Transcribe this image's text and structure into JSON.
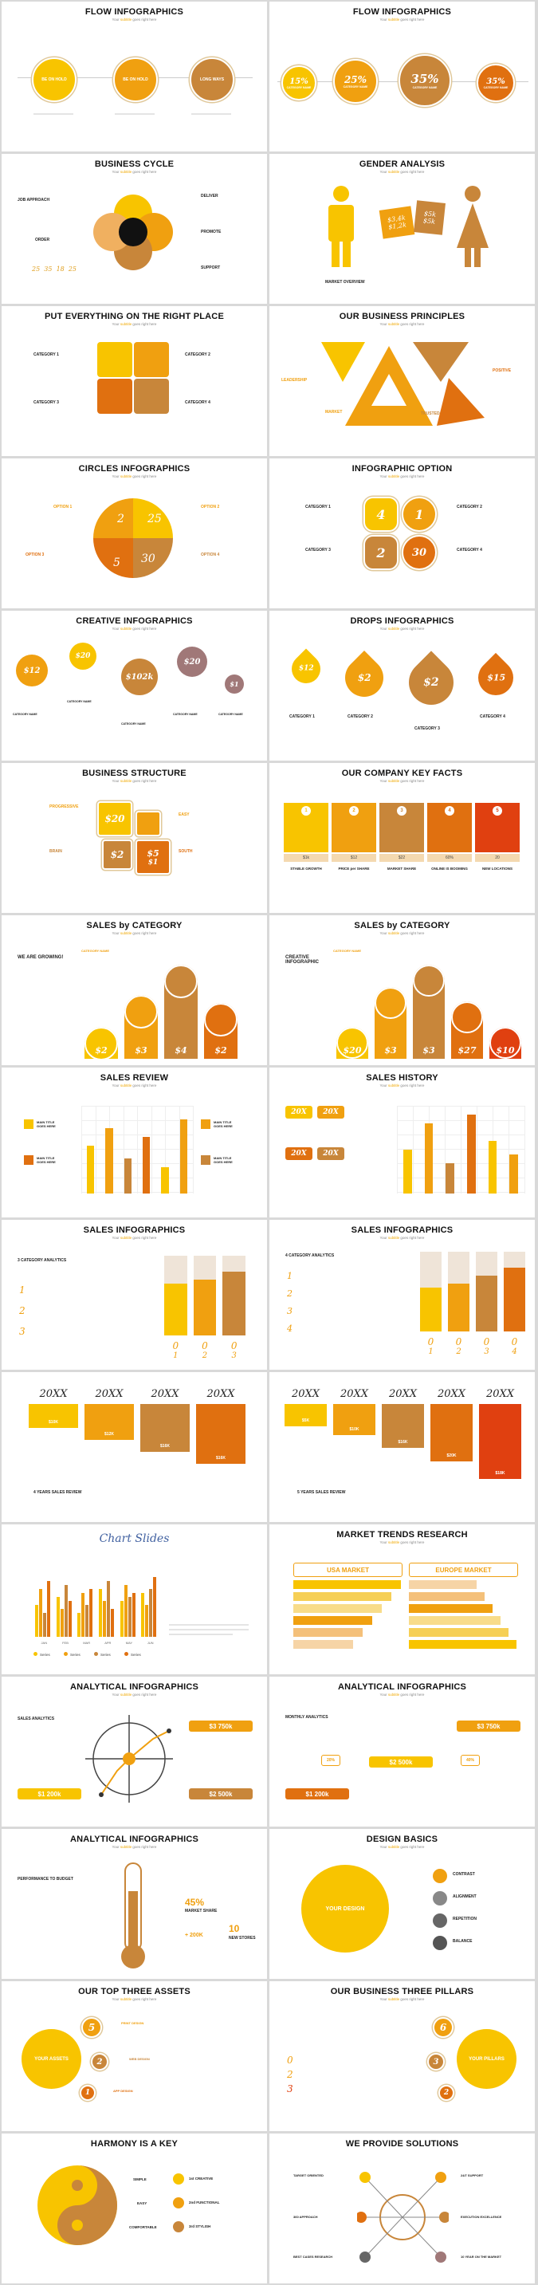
{
  "subtitle": {
    "pre": "Your ",
    "hl": "subtitle",
    "post": " goes right here"
  },
  "colors": {
    "yellow": "#f8c400",
    "orange": "#f0a010",
    "dark_orange": "#e07010",
    "brown": "#c8863a",
    "red": "#e04010",
    "mauve": "#a07878",
    "cream": "#f4d9b0"
  },
  "slides": [
    {
      "title": "FLOW INFOGRAPHICS",
      "circles": [
        "BE ON HOLD",
        "BE ON HOLD",
        "LONG WAYS"
      ]
    },
    {
      "title": "FLOW INFOGRAPHICS",
      "values": [
        "15%",
        "25%",
        "35%",
        "35%"
      ],
      "labels": [
        "CATEGORY NAME",
        "CATEGORY NAME",
        "CATEGORY NAME",
        "CATEGORY NAME"
      ]
    },
    {
      "title": "BUSINESS CYCLE",
      "labels": [
        "JOB APPROACH",
        "DELIVER",
        "PROMOTE",
        "ORDER",
        "SUPPORT"
      ],
      "nums": [
        "25",
        "35",
        "18",
        "25"
      ]
    },
    {
      "title": "GENDER ANALYSIS",
      "values": [
        "$3,4k",
        "$1,2k",
        "$5k",
        "$5k"
      ],
      "caption": "MARKET OVERVIEW"
    },
    {
      "title": "PUT EVERYTHING ON THE RIGHT PLACE",
      "cats": [
        "CATEGORY 1",
        "CATEGORY 2",
        "CATEGORY 3",
        "CATEGORY 4"
      ]
    },
    {
      "title": "OUR BUSINESS PRINCIPLES",
      "labels": [
        "LEADERSHIP",
        "MARKET",
        "TRUSTED",
        "POSITIVE"
      ]
    },
    {
      "title": "CIRCLES INFOGRAPHICS",
      "options": [
        "OPTION 1",
        "OPTION 2",
        "OPTION 3",
        "OPTION 4"
      ],
      "nums": [
        "25",
        "2",
        "30",
        "5"
      ]
    },
    {
      "title": "INFOGRAPHIC OPTION",
      "cats": [
        "CATEGORY 1",
        "CATEGORY 2",
        "CATEGORY 3",
        "CATEGORY 4"
      ],
      "nums": [
        "4",
        "1",
        "2",
        "30"
      ]
    },
    {
      "title": "CREATIVE INFOGRAPHICS",
      "values": [
        "$12",
        "$20",
        "$102k",
        "$20",
        "$1"
      ],
      "labels": [
        "CATEGORY NAME",
        "CATEGORY NAME",
        "CATEGORY NAME",
        "CATEGORY NAME",
        "CATEGORY NAME"
      ]
    },
    {
      "title": "DROPS INFOGRAPHICS",
      "values": [
        "$12",
        "$2",
        "$2",
        "$15"
      ],
      "labels": [
        "CATEGORY 1",
        "CATEGORY 2",
        "CATEGORY 3",
        "CATEGORY 4"
      ]
    },
    {
      "title": "BUSINESS STRUCTURE",
      "labels": [
        "PROGRESSIVE",
        "EASY",
        "BRAIN",
        "SOUTH"
      ],
      "nums": [
        "$20",
        "$2",
        "$5",
        "$1"
      ]
    },
    {
      "title": "OUR COMPANY KEY FACTS",
      "values": [
        "$1k",
        "$12",
        "$22",
        "60%",
        "20"
      ],
      "labels": [
        "STABLE GROWTH",
        "PRICE per SHARE",
        "MARKET SHARE",
        "ONLINE IS BOOMING",
        "NEW LOCATIONS"
      ]
    },
    {
      "title": "SALES by CATEGORY",
      "heading": "WE ARE GROWING!",
      "values": [
        "$2",
        "$3",
        "$4",
        "$2"
      ],
      "cat": "CATEGORY NAME"
    },
    {
      "title": "SALES by CATEGORY",
      "heading": "CREATIVE INFOGRAPHIC",
      "values": [
        "$20",
        "$3",
        "$3",
        "$27",
        "$10"
      ],
      "cat": "CATEGORY NAME"
    },
    {
      "title": "SALES REVIEW",
      "items": [
        "MAIN TITLE GOES HERE",
        "MAIN TITLE GOES HERE",
        "MAIN TITLE GOES HERE",
        "MAIN TITLE GOES HERE"
      ],
      "bars": [
        0.55,
        0.75,
        0.4,
        0.65,
        0.3,
        0.85
      ]
    },
    {
      "title": "SALES HISTORY",
      "years": [
        "20X",
        "20X",
        "20X",
        "20X"
      ],
      "bars": [
        0.5,
        0.8,
        0.35,
        0.9,
        0.6,
        0.45
      ]
    },
    {
      "title": "SALES INFOGRAPHICS",
      "heading": "3 CATEGORY ANALYTICS",
      "digits": [
        "0",
        "0",
        "0"
      ],
      "nums": [
        "1",
        "2",
        "3"
      ],
      "fills": [
        0.65,
        0.7,
        0.8
      ]
    },
    {
      "title": "SALES INFOGRAPHICS",
      "heading": "4 CATEGORY ANALYTICS",
      "digits": [
        "0",
        "0",
        "0",
        "0"
      ],
      "nums": [
        "1",
        "2",
        "3",
        "4"
      ],
      "fills": [
        0.55,
        0.6,
        0.7,
        0.8
      ]
    },
    {
      "title": "",
      "years": [
        "20XX",
        "20XX",
        "20XX",
        "20XX"
      ],
      "values": [
        "$10K",
        "$12K",
        "$16K",
        "$16K"
      ],
      "caption": "4 YEARS SALES REVIEW",
      "heights": [
        0.3,
        0.45,
        0.6,
        0.75
      ]
    },
    {
      "title": "",
      "years": [
        "20XX",
        "20XX",
        "20XX",
        "20XX",
        "20XX"
      ],
      "values": [
        "$5K",
        "$10K",
        "$16K",
        "$20K",
        "$18K"
      ],
      "caption": "5 YEARS SALES REVIEW",
      "heights": [
        0.25,
        0.35,
        0.5,
        0.65,
        0.85
      ]
    },
    {
      "title": "Chart Slides",
      "legend": [
        "Series",
        "Series",
        "Series",
        "Series"
      ],
      "months": [
        "JAN",
        "FEB",
        "MAR",
        "APR",
        "MAY",
        "JUN"
      ]
    },
    {
      "title": "MARKET TRENDS RESEARCH",
      "cols": [
        "USA MARKET",
        "EUROPE MARKET"
      ]
    },
    {
      "title": "ANALYTICAL INFOGRAPHICS",
      "heading": "SALES ANALYTICS",
      "values": [
        "$3 750k",
        "$1 200k",
        "$2 500k"
      ]
    },
    {
      "title": "ANALYTICAL INFOGRAPHICS",
      "heading": "MONTHLY ANALYTICS",
      "values": [
        "$3 750k",
        "$2 500k",
        "$1 200k"
      ],
      "pcts": [
        "20%",
        "40%"
      ]
    },
    {
      "title": "ANALYTICAL INFOGRAPHICS",
      "heading": "PERFORMANCE TO BUDGET",
      "values": [
        "45%",
        "10",
        "+ 200K"
      ],
      "labels": [
        "MARKET SHARE",
        "NEW STORES"
      ]
    },
    {
      "title": "DESIGN BASICS",
      "center": "YOUR DESIGN",
      "labels": [
        "CONTRAST",
        "ALIGNMENT",
        "REPETITION",
        "BALANCE"
      ]
    },
    {
      "title": "OUR TOP THREE ASSETS",
      "center": "YOUR ASSETS",
      "nums": [
        "5",
        "2",
        "1"
      ],
      "labels": [
        "PRINT DESIGN",
        "WEB DESIGN",
        "APP DESIGN"
      ]
    },
    {
      "title": "OUR BUSINESS THREE PILLARS",
      "center": "YOUR PILLARS",
      "nums": [
        "6",
        "3",
        "2"
      ],
      "digits": [
        "0",
        "2",
        "3"
      ]
    },
    {
      "title": "HARMONY IS A KEY",
      "labels": [
        "SIMPLE",
        "EASY",
        "COMFORTABLE"
      ],
      "rlabels": [
        "CREATIVE",
        "FUNCTIONAL",
        "STYLISH"
      ],
      "nums": [
        "1st",
        "2nd",
        "3rd"
      ]
    },
    {
      "title": "WE PROVIDE SOLUTIONS",
      "labels": [
        "TARGET ORIENTED",
        "24/7 SUPPORT",
        "360 APPROACH",
        "EXECUTION EXCELLENCE",
        "BEST CASES RESEARCH",
        "10 YEAR ON THE MARKET"
      ]
    }
  ]
}
